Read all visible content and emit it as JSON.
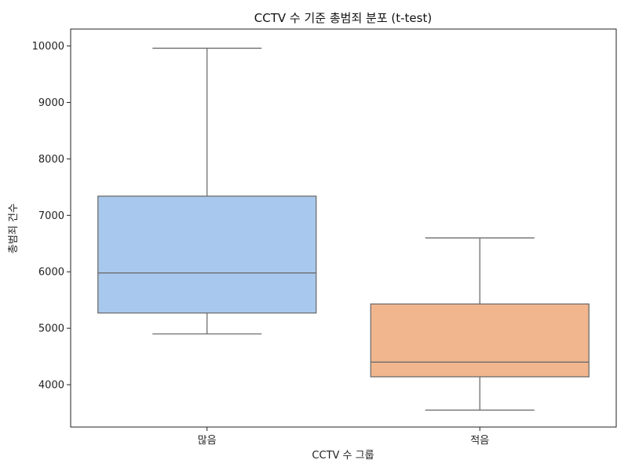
{
  "chart_data": {
    "type": "box",
    "title": "CCTV 수 기준 총범죄 분포 (t-test)",
    "xlabel": "CCTV 수 그룹",
    "ylabel": "총범죄 건수",
    "ylim": [
      3250,
      10300
    ],
    "yticks": [
      4000,
      5000,
      6000,
      7000,
      8000,
      9000,
      10000
    ],
    "grid": false,
    "legend": "none",
    "series": [
      {
        "category": "많음",
        "whisker_low": 4900,
        "q1": 5270,
        "median": 5980,
        "q3": 7340,
        "whisker_high": 9960,
        "color": "#a9c8ee"
      },
      {
        "category": "적음",
        "whisker_low": 3550,
        "q1": 4140,
        "median": 4400,
        "q3": 5430,
        "whisker_high": 6600,
        "color": "#f1b68e"
      }
    ]
  }
}
